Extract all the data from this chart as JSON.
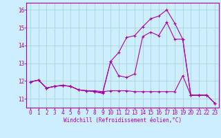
{
  "background_color": "#cceeff",
  "grid_color": "#aad4d4",
  "line_color": "#aa00aa",
  "marker": "+",
  "xlabel": "Windchill (Refroidissement éolien,°C)",
  "xlim": [
    -0.5,
    23.5
  ],
  "ylim": [
    10.5,
    16.4
  ],
  "yticks": [
    11,
    12,
    13,
    14,
    15,
    16
  ],
  "xticks": [
    0,
    1,
    2,
    3,
    4,
    5,
    6,
    7,
    8,
    9,
    10,
    11,
    12,
    13,
    14,
    15,
    16,
    17,
    18,
    19,
    20,
    21,
    22,
    23
  ],
  "series1_x": [
    0,
    1,
    2,
    3,
    4,
    5,
    6,
    7,
    8,
    9,
    10,
    11,
    12,
    13,
    14,
    15,
    16,
    17,
    18,
    19,
    20,
    21,
    22,
    23
  ],
  "series1_y": [
    11.95,
    12.05,
    11.6,
    11.7,
    11.75,
    11.7,
    11.5,
    11.45,
    11.45,
    11.4,
    11.45,
    11.45,
    11.45,
    11.4,
    11.4,
    11.4,
    11.4,
    11.4,
    11.4,
    12.3,
    11.2,
    11.2,
    11.2,
    10.75
  ],
  "series2_x": [
    0,
    1,
    2,
    3,
    4,
    5,
    6,
    7,
    8,
    9,
    10,
    11,
    12,
    13,
    14,
    15,
    16,
    17,
    18,
    19,
    20,
    21,
    22,
    23
  ],
  "series2_y": [
    11.95,
    12.05,
    11.6,
    11.7,
    11.75,
    11.7,
    11.5,
    11.45,
    11.4,
    11.35,
    13.1,
    13.6,
    14.45,
    14.55,
    15.05,
    15.5,
    15.65,
    16.0,
    15.25,
    14.35,
    11.2,
    11.2,
    11.2,
    10.75
  ],
  "series3_x": [
    0,
    1,
    2,
    3,
    4,
    5,
    6,
    7,
    8,
    9,
    10,
    11,
    12,
    13,
    14,
    15,
    16,
    17,
    18,
    19,
    20,
    21,
    22,
    23
  ],
  "series3_y": [
    11.95,
    12.05,
    11.6,
    11.7,
    11.75,
    11.7,
    11.5,
    11.45,
    11.4,
    11.3,
    13.1,
    12.3,
    12.2,
    12.4,
    14.5,
    14.75,
    14.55,
    15.3,
    14.35,
    14.35,
    11.2,
    11.2,
    11.2,
    10.75
  ]
}
